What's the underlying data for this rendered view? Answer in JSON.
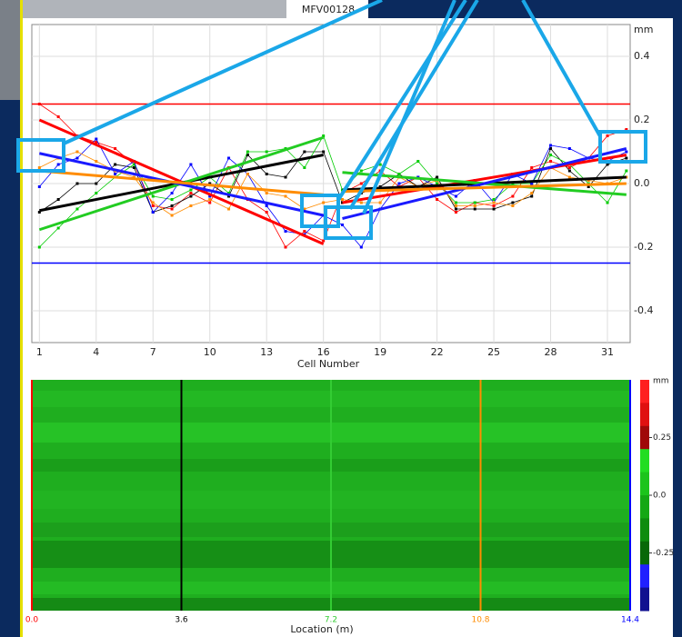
{
  "chart_data": [
    {
      "type": "line",
      "title": "MFV00128",
      "y_unit": "mm",
      "x_label": "Cell Number",
      "x": [
        1,
        2,
        3,
        4,
        5,
        6,
        7,
        8,
        9,
        10,
        11,
        12,
        13,
        14,
        15,
        16,
        17,
        18,
        19,
        20,
        21,
        22,
        23,
        24,
        25,
        26,
        27,
        28,
        29,
        30,
        31,
        32
      ],
      "xlim": [
        0.6,
        32.2
      ],
      "xticks": [
        1,
        4,
        7,
        10,
        13,
        16,
        19,
        22,
        25,
        28,
        31
      ],
      "ylim": [
        -0.5,
        0.5
      ],
      "yticks": [
        0.4,
        0.2,
        {
          "value": 0,
          "label": "0.0"
        },
        -0.2,
        -0.4
      ],
      "grid": true,
      "series": [
        {
          "color": "#ff0000",
          "values": [
            0.25,
            0.21,
            0.15,
            0.13,
            0.11,
            0.06,
            -0.07,
            -0.08,
            -0.03,
            -0.06,
            0.05,
            -0.05,
            -0.09,
            -0.2,
            -0.15,
            -0.18,
            -0.03,
            0.0,
            0.04,
            -0.01,
            0.02,
            -0.05,
            -0.09,
            -0.06,
            -0.07,
            -0.04,
            0.05,
            0.07,
            0.05,
            0.08,
            0.15,
            0.17
          ]
        },
        {
          "color": "#000000",
          "values": [
            -0.09,
            -0.05,
            0.0,
            0.0,
            0.06,
            0.05,
            -0.09,
            -0.07,
            -0.04,
            0.0,
            -0.04,
            0.09,
            0.03,
            0.02,
            0.1,
            0.1,
            -0.06,
            -0.03,
            -0.01,
            0.03,
            -0.01,
            0.02,
            -0.08,
            -0.08,
            -0.08,
            -0.06,
            -0.04,
            0.11,
            0.04,
            -0.01,
            0.06,
            0.08
          ]
        },
        {
          "color": "#00cc00",
          "values": [
            -0.2,
            -0.14,
            -0.08,
            -0.03,
            0.02,
            0.06,
            -0.04,
            -0.05,
            -0.02,
            0.02,
            -0.03,
            0.1,
            0.1,
            0.11,
            0.05,
            0.15,
            -0.02,
            0.04,
            0.06,
            0.03,
            0.07,
            0.0,
            -0.06,
            -0.06,
            -0.05,
            0.0,
            0.0,
            0.09,
            0.06,
            0.0,
            -0.06,
            0.04
          ]
        },
        {
          "color": "#0000ff",
          "values": [
            -0.01,
            0.06,
            0.08,
            0.14,
            0.03,
            0.07,
            -0.09,
            -0.03,
            0.06,
            -0.04,
            0.08,
            0.03,
            -0.07,
            -0.15,
            -0.16,
            -0.1,
            -0.13,
            -0.2,
            -0.08,
            0.0,
            0.02,
            -0.01,
            -0.04,
            0.01,
            -0.06,
            0.03,
            0.0,
            0.12,
            0.11,
            0.08,
            0.07,
            0.1
          ]
        },
        {
          "color": "#ff8c00",
          "values": [
            0.05,
            0.08,
            0.1,
            0.07,
            0.04,
            0.02,
            -0.06,
            -0.1,
            -0.07,
            -0.05,
            -0.08,
            0.03,
            -0.03,
            -0.04,
            -0.08,
            -0.06,
            -0.05,
            -0.06,
            -0.06,
            0.02,
            -0.01,
            0.01,
            -0.07,
            -0.07,
            -0.06,
            -0.07,
            -0.03,
            0.05,
            0.02,
            0.01,
            0.0,
            0.02
          ]
        }
      ],
      "trends": [
        {
          "color": "#ff0000",
          "x": [
            1,
            16
          ],
          "values": [
            0.2,
            -0.19
          ]
        },
        {
          "color": "#ff0000",
          "x": [
            17,
            32
          ],
          "values": [
            -0.06,
            0.09
          ]
        },
        {
          "color": "#000000",
          "x": [
            1,
            16
          ],
          "values": [
            -0.085,
            0.09
          ]
        },
        {
          "color": "#000000",
          "x": [
            17,
            32
          ],
          "values": [
            -0.02,
            0.02
          ]
        },
        {
          "color": "#22cc22",
          "x": [
            1,
            16
          ],
          "values": [
            -0.145,
            0.145
          ]
        },
        {
          "color": "#22cc22",
          "x": [
            17,
            32
          ],
          "values": [
            0.035,
            -0.035
          ]
        },
        {
          "color": "#1a1aff",
          "x": [
            1,
            16
          ],
          "values": [
            0.095,
            -0.1
          ]
        },
        {
          "color": "#1a1aff",
          "x": [
            17,
            32
          ],
          "values": [
            -0.11,
            0.11
          ]
        },
        {
          "color": "#ff8c00",
          "x": [
            1,
            16
          ],
          "values": [
            0.04,
            -0.035
          ]
        },
        {
          "color": "#ff8c00",
          "x": [
            17,
            32
          ],
          "values": [
            -0.025,
            0.0
          ]
        }
      ],
      "hlines": [
        {
          "value": 0.25,
          "color": "#ff0000"
        },
        {
          "value": -0.25,
          "color": "#0000ff"
        }
      ]
    },
    {
      "type": "heatmap",
      "x_label": "Location (m)",
      "unit": "mm",
      "xlim": [
        0,
        14.4
      ],
      "xticks": [
        {
          "value": 0,
          "label": "0.0",
          "color": "#ff0000"
        },
        {
          "value": 3.6,
          "label": "3.6",
          "color": "#000000"
        },
        {
          "value": 7.2,
          "label": "7.2",
          "color": "#33cc33"
        },
        {
          "value": 10.8,
          "label": "10.8",
          "color": "#ff8c00"
        },
        {
          "value": 14.4,
          "label": "14.4",
          "color": "#0000ff"
        }
      ],
      "clim": [
        -0.5,
        0.5
      ],
      "cticks": [
        0.25,
        {
          "value": 0,
          "label": "0.0"
        },
        -0.25
      ],
      "colors": [
        "#ff2020",
        "#e01010",
        "#a00808",
        "#22dd22",
        "#1cc41c",
        "#14a814",
        "#0e8c0e",
        "#086808",
        "#2020ff",
        "#101090"
      ]
    }
  ]
}
